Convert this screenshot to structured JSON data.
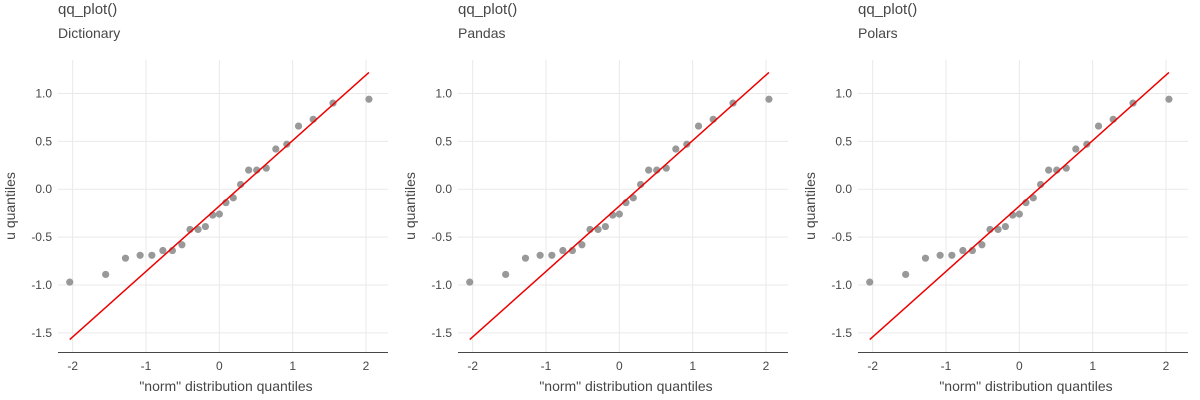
{
  "chart_data": [
    {
      "type": "scatter",
      "title": "qq_plot()",
      "subtitle": "Dictionary",
      "xlabel": "\"norm\" distribution quantiles",
      "ylabel": "u quantiles",
      "xlim": [
        -2.2,
        2.3
      ],
      "ylim": [
        -1.7,
        1.35
      ],
      "xticks": [
        -2,
        -1,
        0,
        1,
        2
      ],
      "xtick_labels": [
        "-2",
        "-1",
        "0",
        "1",
        "2"
      ],
      "yticks": [
        -1.5,
        -1.0,
        -0.5,
        0.0,
        0.5,
        1.0
      ],
      "ytick_labels": [
        "-1.5",
        "-1.0",
        "-0.5",
        "0.0",
        "0.5",
        "1.0"
      ],
      "grid": true,
      "point_color": "#999999",
      "line_color": "#ee0000",
      "points": {
        "x": [
          -2.04,
          -1.55,
          -1.28,
          -1.08,
          -0.92,
          -0.77,
          -0.64,
          -0.51,
          -0.4,
          -0.29,
          -0.19,
          -0.09,
          0.0,
          0.09,
          0.19,
          0.29,
          0.4,
          0.51,
          0.64,
          0.77,
          0.92,
          1.08,
          1.28,
          1.55,
          2.04
        ],
        "y": [
          -0.97,
          -0.89,
          -0.72,
          -0.69,
          -0.69,
          -0.64,
          -0.64,
          -0.58,
          -0.42,
          -0.42,
          -0.39,
          -0.27,
          -0.26,
          -0.14,
          -0.09,
          0.05,
          0.2,
          0.2,
          0.22,
          0.42,
          0.47,
          0.66,
          0.73,
          0.9,
          0.94
        ]
      },
      "reference_line": {
        "x": [
          -2.04,
          2.04
        ],
        "y": [
          -1.57,
          1.22
        ]
      }
    },
    {
      "type": "scatter",
      "title": "qq_plot()",
      "subtitle": "Pandas",
      "xlabel": "\"norm\" distribution quantiles",
      "ylabel": "u quantiles",
      "xlim": [
        -2.2,
        2.3
      ],
      "ylim": [
        -1.7,
        1.35
      ],
      "xticks": [
        -2,
        -1,
        0,
        1,
        2
      ],
      "xtick_labels": [
        "-2",
        "-1",
        "0",
        "1",
        "2"
      ],
      "yticks": [
        -1.5,
        -1.0,
        -0.5,
        0.0,
        0.5,
        1.0
      ],
      "ytick_labels": [
        "-1.5",
        "-1.0",
        "-0.5",
        "0.0",
        "0.5",
        "1.0"
      ],
      "grid": true,
      "point_color": "#999999",
      "line_color": "#ee0000",
      "points": {
        "x": [
          -2.04,
          -1.55,
          -1.28,
          -1.08,
          -0.92,
          -0.77,
          -0.64,
          -0.51,
          -0.4,
          -0.29,
          -0.19,
          -0.09,
          0.0,
          0.09,
          0.19,
          0.29,
          0.4,
          0.51,
          0.64,
          0.77,
          0.92,
          1.08,
          1.28,
          1.55,
          2.04
        ],
        "y": [
          -0.97,
          -0.89,
          -0.72,
          -0.69,
          -0.69,
          -0.64,
          -0.64,
          -0.58,
          -0.42,
          -0.42,
          -0.39,
          -0.27,
          -0.26,
          -0.14,
          -0.09,
          0.05,
          0.2,
          0.2,
          0.22,
          0.42,
          0.47,
          0.66,
          0.73,
          0.9,
          0.94
        ]
      },
      "reference_line": {
        "x": [
          -2.04,
          2.04
        ],
        "y": [
          -1.57,
          1.22
        ]
      }
    },
    {
      "type": "scatter",
      "title": "qq_plot()",
      "subtitle": "Polars",
      "xlabel": "\"norm\" distribution quantiles",
      "ylabel": "u quantiles",
      "xlim": [
        -2.2,
        2.3
      ],
      "ylim": [
        -1.7,
        1.35
      ],
      "xticks": [
        -2,
        -1,
        0,
        1,
        2
      ],
      "xtick_labels": [
        "-2",
        "-1",
        "0",
        "1",
        "2"
      ],
      "yticks": [
        -1.5,
        -1.0,
        -0.5,
        0.0,
        0.5,
        1.0
      ],
      "ytick_labels": [
        "-1.5",
        "-1.0",
        "-0.5",
        "0.0",
        "0.5",
        "1.0"
      ],
      "grid": true,
      "point_color": "#999999",
      "line_color": "#ee0000",
      "points": {
        "x": [
          -2.04,
          -1.55,
          -1.28,
          -1.08,
          -0.92,
          -0.77,
          -0.64,
          -0.51,
          -0.4,
          -0.29,
          -0.19,
          -0.09,
          0.0,
          0.09,
          0.19,
          0.29,
          0.4,
          0.51,
          0.64,
          0.77,
          0.92,
          1.08,
          1.28,
          1.55,
          2.04
        ],
        "y": [
          -0.97,
          -0.89,
          -0.72,
          -0.69,
          -0.69,
          -0.64,
          -0.64,
          -0.58,
          -0.42,
          -0.42,
          -0.39,
          -0.27,
          -0.26,
          -0.14,
          -0.09,
          0.05,
          0.2,
          0.2,
          0.22,
          0.42,
          0.47,
          0.66,
          0.73,
          0.9,
          0.94
        ]
      },
      "reference_line": {
        "x": [
          -2.04,
          2.04
        ],
        "y": [
          -1.57,
          1.22
        ]
      }
    }
  ]
}
